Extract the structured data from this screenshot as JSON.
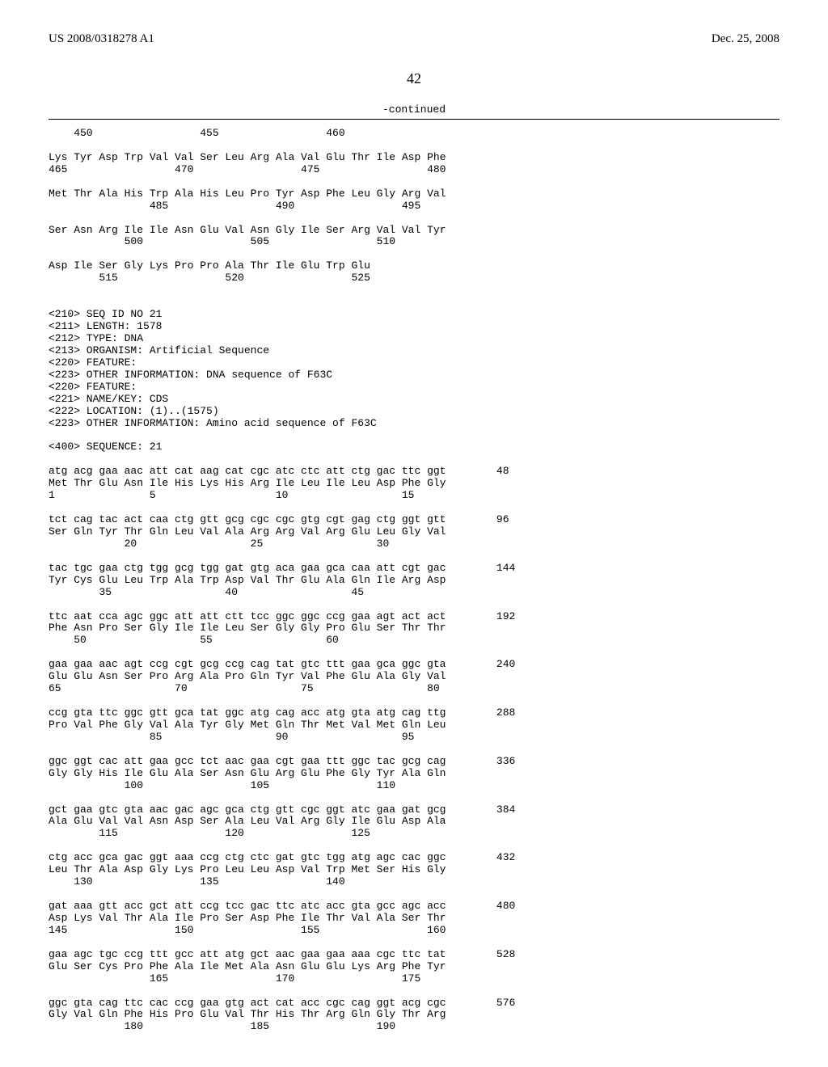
{
  "header": {
    "left": "US 2008/0318278 A1",
    "right": "Dec. 25, 2008"
  },
  "pagenum": "42",
  "continued": "-continued",
  "rows": [
    {
      "seq": "    450                 455                 460",
      "num": ""
    },
    {
      "seq": "",
      "num": ""
    },
    {
      "seq": "Lys Tyr Asp Trp Val Val Ser Leu Arg Ala Val Glu Thr Ile Asp Phe",
      "num": ""
    },
    {
      "seq": "465                 470                 475                 480",
      "num": ""
    },
    {
      "seq": "",
      "num": ""
    },
    {
      "seq": "Met Thr Ala His Trp Ala His Leu Pro Tyr Asp Phe Leu Gly Arg Val",
      "num": ""
    },
    {
      "seq": "                485                 490                 495",
      "num": ""
    },
    {
      "seq": "",
      "num": ""
    },
    {
      "seq": "Ser Asn Arg Ile Ile Asn Glu Val Asn Gly Ile Ser Arg Val Val Tyr",
      "num": ""
    },
    {
      "seq": "            500                 505                 510",
      "num": ""
    },
    {
      "seq": "",
      "num": ""
    },
    {
      "seq": "Asp Ile Ser Gly Lys Pro Pro Ala Thr Ile Glu Trp Glu",
      "num": ""
    },
    {
      "seq": "        515                 520                 525",
      "num": ""
    },
    {
      "seq": "",
      "num": ""
    },
    {
      "seq": "",
      "num": ""
    },
    {
      "seq": "<210> SEQ ID NO 21",
      "num": ""
    },
    {
      "seq": "<211> LENGTH: 1578",
      "num": ""
    },
    {
      "seq": "<212> TYPE: DNA",
      "num": ""
    },
    {
      "seq": "<213> ORGANISM: Artificial Sequence",
      "num": ""
    },
    {
      "seq": "<220> FEATURE:",
      "num": ""
    },
    {
      "seq": "<223> OTHER INFORMATION: DNA sequence of F63C",
      "num": ""
    },
    {
      "seq": "<220> FEATURE:",
      "num": ""
    },
    {
      "seq": "<221> NAME/KEY: CDS",
      "num": ""
    },
    {
      "seq": "<222> LOCATION: (1)..(1575)",
      "num": ""
    },
    {
      "seq": "<223> OTHER INFORMATION: Amino acid sequence of F63C",
      "num": ""
    },
    {
      "seq": "",
      "num": ""
    },
    {
      "seq": "<400> SEQUENCE: 21",
      "num": ""
    },
    {
      "seq": "",
      "num": ""
    },
    {
      "seq": "atg acg gaa aac att cat aag cat cgc atc ctc att ctg gac ttc ggt",
      "num": "48"
    },
    {
      "seq": "Met Thr Glu Asn Ile His Lys His Arg Ile Leu Ile Leu Asp Phe Gly",
      "num": ""
    },
    {
      "seq": "1               5                   10                  15",
      "num": ""
    },
    {
      "seq": "",
      "num": ""
    },
    {
      "seq": "tct cag tac act caa ctg gtt gcg cgc cgc gtg cgt gag ctg ggt gtt",
      "num": "96"
    },
    {
      "seq": "Ser Gln Tyr Thr Gln Leu Val Ala Arg Arg Val Arg Glu Leu Gly Val",
      "num": ""
    },
    {
      "seq": "            20                  25                  30",
      "num": ""
    },
    {
      "seq": "",
      "num": ""
    },
    {
      "seq": "tac tgc gaa ctg tgg gcg tgg gat gtg aca gaa gca caa att cgt gac",
      "num": "144"
    },
    {
      "seq": "Tyr Cys Glu Leu Trp Ala Trp Asp Val Thr Glu Ala Gln Ile Arg Asp",
      "num": ""
    },
    {
      "seq": "        35                  40                  45",
      "num": ""
    },
    {
      "seq": "",
      "num": ""
    },
    {
      "seq": "ttc aat cca agc ggc att att ctt tcc ggc ggc ccg gaa agt act act",
      "num": "192"
    },
    {
      "seq": "Phe Asn Pro Ser Gly Ile Ile Leu Ser Gly Gly Pro Glu Ser Thr Thr",
      "num": ""
    },
    {
      "seq": "    50                  55                  60",
      "num": ""
    },
    {
      "seq": "",
      "num": ""
    },
    {
      "seq": "gaa gaa aac agt ccg cgt gcg ccg cag tat gtc ttt gaa gca ggc gta",
      "num": "240"
    },
    {
      "seq": "Glu Glu Asn Ser Pro Arg Ala Pro Gln Tyr Val Phe Glu Ala Gly Val",
      "num": ""
    },
    {
      "seq": "65                  70                  75                  80",
      "num": ""
    },
    {
      "seq": "",
      "num": ""
    },
    {
      "seq": "ccg gta ttc ggc gtt gca tat ggc atg cag acc atg gta atg cag ttg",
      "num": "288"
    },
    {
      "seq": "Pro Val Phe Gly Val Ala Tyr Gly Met Gln Thr Met Val Met Gln Leu",
      "num": ""
    },
    {
      "seq": "                85                  90                  95",
      "num": ""
    },
    {
      "seq": "",
      "num": ""
    },
    {
      "seq": "ggc ggt cac att gaa gcc tct aac gaa cgt gaa ttt ggc tac gcg cag",
      "num": "336"
    },
    {
      "seq": "Gly Gly His Ile Glu Ala Ser Asn Glu Arg Glu Phe Gly Tyr Ala Gln",
      "num": ""
    },
    {
      "seq": "            100                 105                 110",
      "num": ""
    },
    {
      "seq": "",
      "num": ""
    },
    {
      "seq": "gct gaa gtc gta aac gac agc gca ctg gtt cgc ggt atc gaa gat gcg",
      "num": "384"
    },
    {
      "seq": "Ala Glu Val Val Asn Asp Ser Ala Leu Val Arg Gly Ile Glu Asp Ala",
      "num": ""
    },
    {
      "seq": "        115                 120                 125",
      "num": ""
    },
    {
      "seq": "",
      "num": ""
    },
    {
      "seq": "ctg acc gca gac ggt aaa ccg ctg ctc gat gtc tgg atg agc cac ggc",
      "num": "432"
    },
    {
      "seq": "Leu Thr Ala Asp Gly Lys Pro Leu Leu Asp Val Trp Met Ser His Gly",
      "num": ""
    },
    {
      "seq": "    130                 135                 140",
      "num": ""
    },
    {
      "seq": "",
      "num": ""
    },
    {
      "seq": "gat aaa gtt acc gct att ccg tcc gac ttc atc acc gta gcc agc acc",
      "num": "480"
    },
    {
      "seq": "Asp Lys Val Thr Ala Ile Pro Ser Asp Phe Ile Thr Val Ala Ser Thr",
      "num": ""
    },
    {
      "seq": "145                 150                 155                 160",
      "num": ""
    },
    {
      "seq": "",
      "num": ""
    },
    {
      "seq": "gaa agc tgc ccg ttt gcc att atg gct aac gaa gaa aaa cgc ttc tat",
      "num": "528"
    },
    {
      "seq": "Glu Ser Cys Pro Phe Ala Ile Met Ala Asn Glu Glu Lys Arg Phe Tyr",
      "num": ""
    },
    {
      "seq": "                165                 170                 175",
      "num": ""
    },
    {
      "seq": "",
      "num": ""
    },
    {
      "seq": "ggc gta cag ttc cac ccg gaa gtg act cat acc cgc cag ggt acg cgc",
      "num": "576"
    },
    {
      "seq": "Gly Val Gln Phe His Pro Glu Val Thr His Thr Arg Gln Gly Thr Arg",
      "num": ""
    },
    {
      "seq": "            180                 185                 190",
      "num": ""
    }
  ]
}
